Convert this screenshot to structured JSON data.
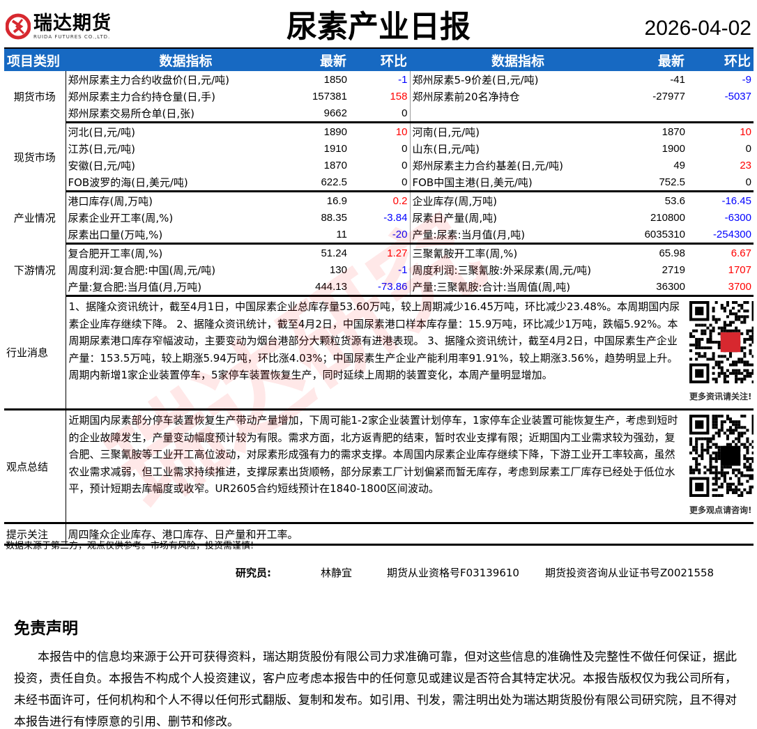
{
  "header": {
    "company_cn": "瑞达期货",
    "company_en": "RUIDA FUTURES CO.,LTD.",
    "title": "尿素产业日报",
    "date": "2026-04-02"
  },
  "columns": {
    "category": "项目类别",
    "indicator": "数据指标",
    "latest": "最新",
    "change": "环比"
  },
  "colors": {
    "header_bg": "#1769c2",
    "up": "#ff0000",
    "down": "#0000ff"
  },
  "sections": [
    {
      "category": "期货市场",
      "rows": [
        {
          "l": {
            "name": "郑州尿素主力合约收盘价(日,元/吨)",
            "latest": "1850",
            "change": "-1",
            "color": "blue"
          },
          "r": {
            "name": "郑州尿素5-9价差(日,元/吨)",
            "latest": "-41",
            "change": "-9",
            "color": "blue"
          }
        },
        {
          "l": {
            "name": "郑州尿素主力合约持仓量(日,手)",
            "latest": "157381",
            "change": "158",
            "color": "red"
          },
          "r": {
            "name": "郑州尿素前20名净持仓",
            "latest": "-27977",
            "change": "-5037",
            "color": "blue"
          }
        },
        {
          "l": {
            "name": "郑州尿素交易所仓单(日,张)",
            "latest": "9662",
            "change": "0",
            "color": "black"
          },
          "r": {
            "name": "",
            "latest": "",
            "change": "",
            "color": "black"
          }
        }
      ]
    },
    {
      "category": "现货市场",
      "rows": [
        {
          "l": {
            "name": "河北(日,元/吨)",
            "latest": "1890",
            "change": "10",
            "color": "red"
          },
          "r": {
            "name": "河南(日,元/吨)",
            "latest": "1870",
            "change": "10",
            "color": "red"
          }
        },
        {
          "l": {
            "name": "江苏(日,元/吨)",
            "latest": "1910",
            "change": "0",
            "color": "black"
          },
          "r": {
            "name": "山东(日,元/吨)",
            "latest": "1900",
            "change": "0",
            "color": "black"
          }
        },
        {
          "l": {
            "name": "安徽(日,元/吨)",
            "latest": "1870",
            "change": "0",
            "color": "black"
          },
          "r": {
            "name": "郑州尿素主力合约基差(日,元/吨)",
            "latest": "49",
            "change": "23",
            "color": "red"
          }
        },
        {
          "l": {
            "name": "FOB波罗的海(日,美元/吨)",
            "latest": "622.5",
            "change": "0",
            "color": "black"
          },
          "r": {
            "name": "FOB中国主港(日,美元/吨)",
            "latest": "752.5",
            "change": "0",
            "color": "black"
          }
        }
      ]
    },
    {
      "category": "产业情况",
      "rows": [
        {
          "l": {
            "name": "港口库存(周,万吨)",
            "latest": "16.9",
            "change": "0.2",
            "color": "red"
          },
          "r": {
            "name": "企业库存(周,万吨)",
            "latest": "53.6",
            "change": "-16.45",
            "color": "blue"
          }
        },
        {
          "l": {
            "name": "尿素企业开工率(周,%)",
            "latest": "88.35",
            "change": "-3.84",
            "color": "blue"
          },
          "r": {
            "name": "尿素日产量(周,吨)",
            "latest": "210800",
            "change": "-6300",
            "color": "blue"
          }
        },
        {
          "l": {
            "name": "尿素出口量(万吨,%)",
            "latest": "11",
            "change": "-20",
            "color": "blue"
          },
          "r": {
            "name": "产量:尿素:当月值(月,吨)",
            "latest": "6035310",
            "change": "-254300",
            "color": "blue"
          }
        }
      ]
    },
    {
      "category": "下游情况",
      "rows": [
        {
          "l": {
            "name": "复合肥开工率(周,%)",
            "latest": "51.24",
            "change": "1.27",
            "color": "red"
          },
          "r": {
            "name": "三聚氰胺开工率(周,%)",
            "latest": "65.98",
            "change": "6.67",
            "color": "red"
          }
        },
        {
          "l": {
            "name": "周度利润:复合肥:中国(周,元/吨)",
            "latest": "130",
            "change": "-1",
            "color": "blue"
          },
          "r": {
            "name": "周度利润:三聚氰胺:外采尿素(周,元/吨)",
            "latest": "2719",
            "change": "1707",
            "color": "red"
          }
        },
        {
          "l": {
            "name": "产量:复合肥:当月值(月,万吨)",
            "latest": "444.13",
            "change": "-73.86",
            "color": "blue"
          },
          "r": {
            "name": "产量:三聚氰胺:合计:当周值(周,吨)",
            "latest": "36300",
            "change": "3700",
            "color": "red"
          }
        }
      ]
    }
  ],
  "news": {
    "label": "行业消息",
    "text": "1、据隆众资讯统计，截至4月1日，中国尿素企业总库存量53.60万吨，较上周期减少16.45万吨，环比减少23.48%。本周期国内尿素企业库存继续下降。 2、据隆众资讯统计，截至4月2日，中国尿素港口样本库存量：15.9万吨，环比减少1万吨，跌幅5.92%。本周期尿素港口库存窄幅波动，主要变动为烟台港部分大颗粒货源有进港表现。 3、据隆众资讯统计，截至4月2日，中国尿素生产企业产量：153.5万吨，较上期涨5.94万吨，环比涨4.03%；中国尿素生产企业产能利用率91.91%，较上期涨3.56%，趋势明显上升。周期内新增1家企业装置停车，5家停车装置恢复生产，同时延续上周期的装置变化，本周产量明显增加。",
    "qr_caption": "更多资讯请关注!"
  },
  "view": {
    "label": "观点总结",
    "text": "近期国内尿素部分停车装置恢复生产带动产量增加，下周可能1-2家企业装置计划停车，1家停车企业装置可能恢复生产，考虑到短时的企业故障发生，产量变动幅度预计较为有限。需求方面，北方返青肥的结束，暂时农业支撑有限；近期国内工业需求较为强劲，复合肥、三聚氰胺等工业开工高位波动，对尿素形成强有力的需求支撑。本周国内尿素企业库存继续下降，下游工业开工率较高，虽然农业需求减弱，但工业需求持续推进，支撑尿素出货顺畅，部分尿素工厂计划偏紧而暂无库存，考虑到尿素工厂库存已经处于低位水平，预计短期去库幅度或收窄。UR2605合约短线预计在1840-1800区间波动。",
    "qr_caption": "更多观点请咨询!"
  },
  "tip": {
    "label": "提示关注",
    "text": "周四隆众企业库存、港口库存、日产量和开工率。"
  },
  "footer": {
    "note": "数据来源于第三方，观点仅供参考。市场有风险，投资需谨慎!",
    "researcher_label": "研究员:",
    "researcher_name": "林静宜",
    "qual_no": "期货从业资格号F03139610",
    "consult_no": "期货投资咨询从业证书号Z0021558"
  },
  "disclaimer": {
    "title": "免责声明",
    "text": "本报告中的信息均来源于公开可获得资料，瑞达期货股份有限公司力求准确可靠，但对这些信息的准确性及完整性不做任何保证，据此投资，责任自负。本报告不构成个人投资建议，客户应考虑本报告中的任何意见或建议是否符合其特定状况。本报告版权仅为我公司所有，未经书面许可，任何机构和个人不得以任何形式翻版、复制和发布。如引用、刊发，需注明出处为瑞达期货股份有限公司研究院，且不得对本报告进行有悖原意的引用、删节和修改。"
  }
}
